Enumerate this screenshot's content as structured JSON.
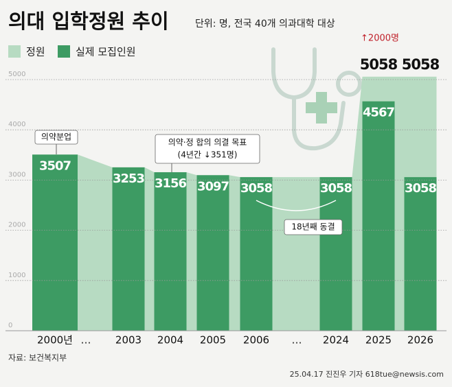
{
  "chart_data": {
    "type": "bar",
    "title": "의대 입학정원 추이",
    "subtitle": "단위: 명, 전국 40개 의과대학 대상",
    "categories": [
      "2000년",
      "…",
      "2003",
      "2004",
      "2005",
      "2006",
      "…",
      "2024",
      "2025",
      "2026"
    ],
    "series": [
      {
        "name": "정원",
        "color": "#b7dbc2",
        "values": [
          3507,
          null,
          3253,
          3156,
          3097,
          3058,
          null,
          3058,
          5058,
          5058
        ]
      },
      {
        "name": "실제 모집인원",
        "color": "#3d9b63",
        "values": [
          3507,
          null,
          3253,
          3156,
          3097,
          3058,
          null,
          3058,
          4567,
          3058
        ]
      }
    ],
    "ylim": [
      0,
      5000
    ],
    "yticks": [
      0,
      1000,
      2000,
      3000,
      4000,
      5000
    ],
    "grid": true,
    "annotations": [
      "의약분업",
      "의약·정 합의 의결 목표",
      "(4년간 ↓351명)",
      "18년째 동결",
      "↑2000명"
    ],
    "source": "자료: 보건복지부",
    "credit": "25.04.17 진진우 기자 618tue@newsis.com"
  }
}
